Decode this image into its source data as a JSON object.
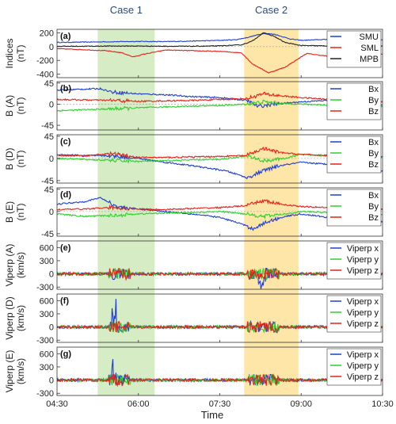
{
  "chart_data": {
    "type": "line",
    "xlabel": "Time",
    "x_range_hours": [
      4.5,
      10.5
    ],
    "x_ticks": [
      {
        "h": 4.5,
        "label": "04:30"
      },
      {
        "h": 6.0,
        "label": "06:00"
      },
      {
        "h": 7.5,
        "label": "07:30"
      },
      {
        "h": 9.0,
        "label": "09:00"
      },
      {
        "h": 10.5,
        "label": "10:30"
      }
    ],
    "cases": [
      {
        "label": "Case 1",
        "start_h": 5.25,
        "end_h": 6.3,
        "color": "#d6ecc4"
      },
      {
        "label": "Case 2",
        "start_h": 7.95,
        "end_h": 8.95,
        "color": "#fde6a8"
      }
    ],
    "panels": [
      {
        "id": "(a)",
        "ylabel": [
          "Indices",
          "(nT)"
        ],
        "ylim": [
          -450,
          250
        ],
        "yticks": [
          200,
          0,
          -200,
          -400
        ],
        "series": [
          {
            "name": "SMU",
            "color": "#1f3fd1",
            "points": [
              [
                4.5,
                60
              ],
              [
                5.0,
                65
              ],
              [
                5.5,
                70
              ],
              [
                6.0,
                75
              ],
              [
                6.5,
                72
              ],
              [
                7.0,
                80
              ],
              [
                7.5,
                90
              ],
              [
                7.8,
                100
              ],
              [
                8.0,
                130
              ],
              [
                8.3,
                190
              ],
              [
                8.5,
                180
              ],
              [
                8.8,
                110
              ],
              [
                9.0,
                90
              ],
              [
                9.5,
                105
              ],
              [
                10.0,
                110
              ],
              [
                10.5,
                95
              ]
            ]
          },
          {
            "name": "SML",
            "color": "#e2231a",
            "points": [
              [
                4.5,
                -30
              ],
              [
                5.0,
                -45
              ],
              [
                5.4,
                -60
              ],
              [
                5.7,
                -90
              ],
              [
                5.9,
                -150
              ],
              [
                6.1,
                -110
              ],
              [
                6.5,
                -50
              ],
              [
                7.0,
                -60
              ],
              [
                7.5,
                -70
              ],
              [
                7.9,
                -90
              ],
              [
                8.1,
                -250
              ],
              [
                8.4,
                -380
              ],
              [
                8.7,
                -300
              ],
              [
                8.9,
                -200
              ],
              [
                9.1,
                -100
              ],
              [
                9.5,
                -140
              ],
              [
                10.0,
                -120
              ],
              [
                10.5,
                -110
              ]
            ]
          },
          {
            "name": "MPB",
            "color": "#222222",
            "points": [
              [
                4.5,
                5
              ],
              [
                5.0,
                5
              ],
              [
                5.5,
                8
              ],
              [
                6.0,
                8
              ],
              [
                6.5,
                5
              ],
              [
                7.0,
                5
              ],
              [
                7.5,
                10
              ],
              [
                7.9,
                25
              ],
              [
                8.1,
                80
              ],
              [
                8.3,
                200
              ],
              [
                8.5,
                150
              ],
              [
                8.7,
                60
              ],
              [
                9.0,
                15
              ],
              [
                9.5,
                10
              ],
              [
                10.0,
                8
              ],
              [
                10.5,
                8
              ]
            ]
          }
        ]
      },
      {
        "id": "(b)",
        "ylabel": [
          "B (A)",
          "(nT)"
        ],
        "ylim": [
          -55,
          48
        ],
        "yticks": [
          45,
          0,
          -45
        ],
        "series": [
          {
            "name": "Bx",
            "color": "#1f3fd1",
            "points": [
              [
                4.5,
                30
              ],
              [
                5.0,
                32
              ],
              [
                5.3,
                33
              ],
              [
                5.5,
                26
              ],
              [
                6.0,
                22
              ],
              [
                6.5,
                20
              ],
              [
                7.0,
                16
              ],
              [
                7.5,
                14
              ],
              [
                8.0,
                8
              ],
              [
                8.2,
                -5
              ],
              [
                8.5,
                0
              ],
              [
                8.8,
                3
              ],
              [
                9.0,
                5
              ],
              [
                9.5,
                8
              ],
              [
                10.0,
                0
              ],
              [
                10.5,
                -2
              ]
            ]
          },
          {
            "name": "By",
            "color": "#2bd12b",
            "points": [
              [
                4.5,
                -14
              ],
              [
                5.0,
                -12
              ],
              [
                5.5,
                -10
              ],
              [
                6.0,
                -8
              ],
              [
                6.5,
                -6
              ],
              [
                7.0,
                -4
              ],
              [
                7.5,
                -3
              ],
              [
                8.0,
                0
              ],
              [
                8.3,
                5
              ],
              [
                8.6,
                2
              ],
              [
                9.0,
                0
              ],
              [
                9.5,
                -2
              ],
              [
                10.0,
                -3
              ],
              [
                10.5,
                -5
              ]
            ]
          },
          {
            "name": "Bz",
            "color": "#e2231a",
            "points": [
              [
                4.5,
                10
              ],
              [
                5.0,
                9
              ],
              [
                5.5,
                8
              ],
              [
                6.0,
                6
              ],
              [
                6.5,
                7
              ],
              [
                7.0,
                8
              ],
              [
                7.5,
                10
              ],
              [
                8.0,
                12
              ],
              [
                8.3,
                22
              ],
              [
                8.6,
                18
              ],
              [
                9.0,
                14
              ],
              [
                9.5,
                10
              ],
              [
                10.0,
                6
              ],
              [
                10.5,
                5
              ]
            ]
          }
        ]
      },
      {
        "id": "(c)",
        "ylabel": [
          "B (D)",
          "(nT)"
        ],
        "ylim": [
          -50,
          48
        ],
        "yticks": [
          45,
          0,
          -45
        ],
        "series": [
          {
            "name": "Bx",
            "color": "#1f3fd1",
            "points": [
              [
                4.5,
                8
              ],
              [
                5.0,
                6
              ],
              [
                5.5,
                5
              ],
              [
                6.0,
                0
              ],
              [
                6.5,
                -8
              ],
              [
                7.0,
                -15
              ],
              [
                7.3,
                -20
              ],
              [
                7.6,
                -25
              ],
              [
                7.9,
                -35
              ],
              [
                8.0,
                -40
              ],
              [
                8.3,
                -25
              ],
              [
                8.6,
                -15
              ],
              [
                9.0,
                -8
              ],
              [
                9.5,
                -12
              ],
              [
                10.0,
                -20
              ],
              [
                10.5,
                -25
              ]
            ]
          },
          {
            "name": "By",
            "color": "#2bd12b",
            "points": [
              [
                4.5,
                0
              ],
              [
                5.0,
                -2
              ],
              [
                5.5,
                -4
              ],
              [
                6.0,
                -6
              ],
              [
                6.5,
                -5
              ],
              [
                7.0,
                -3
              ],
              [
                7.5,
                -2
              ],
              [
                8.0,
                5
              ],
              [
                8.3,
                -5
              ],
              [
                8.7,
                0
              ],
              [
                9.0,
                8
              ],
              [
                9.5,
                5
              ],
              [
                10.0,
                3
              ],
              [
                10.5,
                2
              ]
            ]
          },
          {
            "name": "Bz",
            "color": "#e2231a",
            "points": [
              [
                4.5,
                6
              ],
              [
                5.0,
                5
              ],
              [
                5.5,
                10
              ],
              [
                6.0,
                2
              ],
              [
                6.5,
                2
              ],
              [
                7.0,
                3
              ],
              [
                7.5,
                4
              ],
              [
                8.0,
                6
              ],
              [
                8.3,
                20
              ],
              [
                8.6,
                12
              ],
              [
                9.0,
                8
              ],
              [
                9.5,
                6
              ],
              [
                10.0,
                4
              ],
              [
                10.5,
                4
              ]
            ]
          }
        ]
      },
      {
        "id": "(d)",
        "ylabel": [
          "B (E)",
          "(nT)"
        ],
        "ylim": [
          -50,
          48
        ],
        "yticks": [
          45,
          0,
          -45
        ],
        "series": [
          {
            "name": "Bx",
            "color": "#1f3fd1",
            "points": [
              [
                4.5,
                15
              ],
              [
                5.0,
                20
              ],
              [
                5.3,
                28
              ],
              [
                5.6,
                10
              ],
              [
                6.0,
                5
              ],
              [
                6.5,
                0
              ],
              [
                7.0,
                -5
              ],
              [
                7.5,
                -12
              ],
              [
                7.9,
                -25
              ],
              [
                8.1,
                -35
              ],
              [
                8.4,
                -20
              ],
              [
                8.7,
                -10
              ],
              [
                9.0,
                -5
              ],
              [
                9.5,
                -12
              ],
              [
                10.0,
                -18
              ],
              [
                10.5,
                -20
              ]
            ]
          },
          {
            "name": "By",
            "color": "#2bd12b",
            "points": [
              [
                4.5,
                -5
              ],
              [
                5.0,
                -10
              ],
              [
                5.5,
                -8
              ],
              [
                6.0,
                -5
              ],
              [
                6.5,
                -3
              ],
              [
                7.0,
                -2
              ],
              [
                7.5,
                0
              ],
              [
                8.0,
                -5
              ],
              [
                8.3,
                -10
              ],
              [
                8.7,
                -5
              ],
              [
                9.0,
                0
              ],
              [
                9.5,
                -2
              ],
              [
                10.0,
                -5
              ],
              [
                10.5,
                -6
              ]
            ]
          },
          {
            "name": "Bz",
            "color": "#e2231a",
            "points": [
              [
                4.5,
                4
              ],
              [
                5.0,
                5
              ],
              [
                5.5,
                8
              ],
              [
                6.0,
                5
              ],
              [
                6.5,
                4
              ],
              [
                7.0,
                6
              ],
              [
                7.5,
                8
              ],
              [
                8.0,
                12
              ],
              [
                8.3,
                22
              ],
              [
                8.6,
                15
              ],
              [
                9.0,
                10
              ],
              [
                9.5,
                8
              ],
              [
                10.0,
                6
              ],
              [
                10.5,
                5
              ]
            ]
          }
        ]
      },
      {
        "id": "(e)",
        "ylabel": [
          "Viperp (A)",
          "(km/s)"
        ],
        "ylim": [
          -350,
          750
        ],
        "yticks": [
          600,
          300,
          0,
          -300
        ],
        "series": [
          {
            "name": "Viperp x",
            "color": "#1f3fd1",
            "points": [
              [
                4.5,
                0
              ],
              [
                10.5,
                0
              ]
            ]
          },
          {
            "name": "Viperp y",
            "color": "#2bd12b",
            "points": [
              [
                4.5,
                0
              ],
              [
                10.5,
                0
              ]
            ]
          },
          {
            "name": "Viperp z",
            "color": "#e2231a",
            "points": [
              [
                4.5,
                0
              ],
              [
                10.5,
                0
              ]
            ]
          }
        ]
      },
      {
        "id": "(f)",
        "ylabel": [
          "Viperp (D)",
          "(km/s)"
        ],
        "ylim": [
          -350,
          750
        ],
        "yticks": [
          600,
          300,
          0,
          -300
        ],
        "series": [
          {
            "name": "Viperp x",
            "color": "#1f3fd1",
            "points": [
              [
                4.5,
                0
              ],
              [
                10.5,
                0
              ]
            ]
          },
          {
            "name": "Viperp y",
            "color": "#2bd12b",
            "points": [
              [
                4.5,
                0
              ],
              [
                10.5,
                0
              ]
            ]
          },
          {
            "name": "Viperp z",
            "color": "#e2231a",
            "points": [
              [
                4.5,
                0
              ],
              [
                10.5,
                0
              ]
            ]
          }
        ]
      },
      {
        "id": "(g)",
        "ylabel": [
          "Viperp (E)",
          "(km/s)"
        ],
        "ylim": [
          -350,
          750
        ],
        "yticks": [
          600,
          300,
          0,
          -300
        ],
        "series": [
          {
            "name": "Viperp x",
            "color": "#1f3fd1",
            "points": [
              [
                4.5,
                0
              ],
              [
                10.5,
                0
              ]
            ]
          },
          {
            "name": "Viperp y",
            "color": "#2bd12b",
            "points": [
              [
                4.5,
                0
              ],
              [
                10.5,
                0
              ]
            ]
          },
          {
            "name": "Viperp z",
            "color": "#e2231a",
            "points": [
              [
                4.5,
                0
              ],
              [
                10.5,
                0
              ]
            ]
          }
        ]
      }
    ]
  }
}
